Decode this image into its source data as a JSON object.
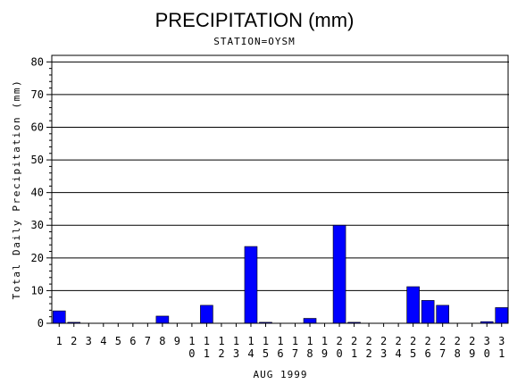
{
  "chart_data": {
    "type": "bar",
    "title": "PRECIPITATION (mm)",
    "subtitle": "STATION=OYSM",
    "xlabel": "AUG 1999",
    "ylabel": "Total Daily Precipitation (mm)",
    "ylim": [
      0,
      82
    ],
    "yticks": [
      0,
      10,
      20,
      30,
      40,
      50,
      60,
      70,
      80
    ],
    "grid": true,
    "bar_color": "#0000ff",
    "categories": [
      "1",
      "2",
      "3",
      "4",
      "5",
      "6",
      "7",
      "8",
      "9",
      "10",
      "11",
      "12",
      "13",
      "14",
      "15",
      "16",
      "17",
      "18",
      "19",
      "20",
      "21",
      "22",
      "23",
      "24",
      "25",
      "26",
      "27",
      "28",
      "29",
      "30",
      "31"
    ],
    "values": [
      3.8,
      0.3,
      0,
      0,
      0,
      0,
      0,
      2.2,
      0,
      0,
      5.5,
      0,
      0,
      23.5,
      0.3,
      0,
      0,
      1.5,
      0,
      30,
      0.3,
      0,
      0,
      0,
      11.2,
      7,
      5.5,
      0,
      0,
      0.5,
      4.8
    ]
  }
}
